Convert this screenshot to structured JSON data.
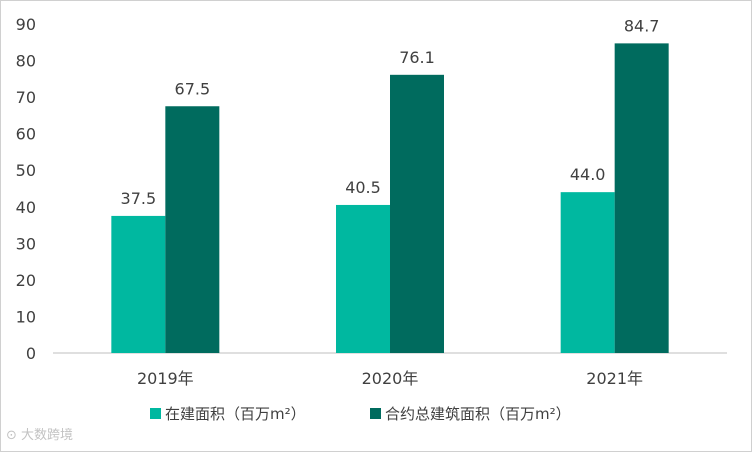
{
  "chart_data": {
    "type": "bar",
    "categories": [
      "2019年",
      "2020年",
      "2021年"
    ],
    "series": [
      {
        "name": "在建面积（百万m²）",
        "values": [
          37.5,
          40.5,
          44.0
        ],
        "labels": [
          "37.5",
          "40.5",
          "44.0"
        ],
        "color": "#00B8A0"
      },
      {
        "name": "合约总建筑面积（百万m²）",
        "values": [
          67.5,
          76.1,
          84.7
        ],
        "labels": [
          "67.5",
          "76.1",
          "84.7"
        ],
        "color": "#006B5E"
      }
    ],
    "ylim": [
      0,
      90
    ],
    "yticks": [
      "0",
      "10",
      "20",
      "30",
      "40",
      "50",
      "60",
      "70",
      "80",
      "90"
    ],
    "grid": false,
    "legend_position": "bottom"
  },
  "watermark": {
    "text": "大数跨境"
  }
}
